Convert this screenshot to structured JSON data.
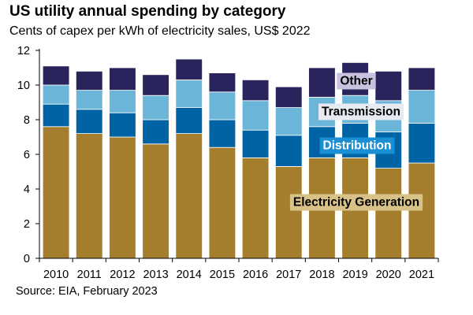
{
  "chart_data": {
    "type": "bar",
    "stacked": true,
    "title": "US utility annual spending by category",
    "subtitle": "Cents of capex per kWh of electricity sales, US$ 2022",
    "source": "Source: EIA, February 2023",
    "categories": [
      "2010",
      "2011",
      "2012",
      "2013",
      "2014",
      "2015",
      "2016",
      "2017",
      "2018",
      "2019",
      "2020",
      "2021"
    ],
    "ylim": [
      0,
      12
    ],
    "yticks": [
      0,
      2,
      4,
      6,
      8,
      10,
      12
    ],
    "grid": false,
    "series": [
      {
        "name": "Electricity Generation",
        "color": "#a47e2c",
        "label_bg": "#d9c287",
        "label_color": "#000000",
        "values": [
          7.6,
          7.2,
          7.0,
          6.6,
          7.2,
          6.4,
          5.8,
          5.3,
          5.8,
          5.8,
          5.2,
          5.5
        ]
      },
      {
        "name": "Distribution",
        "color": "#0063a3",
        "label_bg": "#1a8fd4",
        "label_color": "#ffffff",
        "values": [
          1.3,
          1.4,
          1.4,
          1.4,
          1.5,
          1.6,
          1.6,
          1.8,
          1.8,
          2.0,
          2.1,
          2.3
        ]
      },
      {
        "name": "Transmission",
        "color": "#6bb6d8",
        "label_bg": "#e8eaf2",
        "label_color": "#000000",
        "values": [
          1.1,
          1.1,
          1.3,
          1.4,
          1.6,
          1.6,
          1.7,
          1.6,
          1.7,
          1.6,
          1.8,
          1.9
        ]
      },
      {
        "name": "Other",
        "color": "#2a245c",
        "label_bg": "#c9c2de",
        "label_color": "#000000",
        "values": [
          1.1,
          1.1,
          1.3,
          1.2,
          1.2,
          1.1,
          1.2,
          1.2,
          1.7,
          1.9,
          1.7,
          1.3
        ]
      }
    ]
  }
}
